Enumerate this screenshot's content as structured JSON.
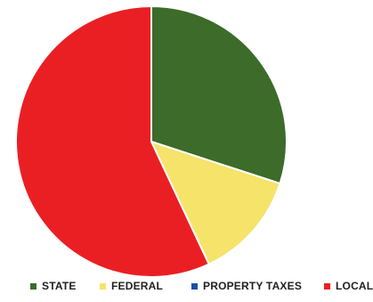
{
  "chart_data": {
    "type": "pie",
    "title": "",
    "legend_position": "bottom",
    "categories": [
      "STATE",
      "FEDERAL",
      "PROPERTY TAXES",
      "LOCAL"
    ],
    "values": [
      30,
      13,
      0,
      57
    ],
    "colors": [
      "#3c6b2a",
      "#f6e36a",
      "#1d4ea1",
      "#ea1f24"
    ]
  }
}
